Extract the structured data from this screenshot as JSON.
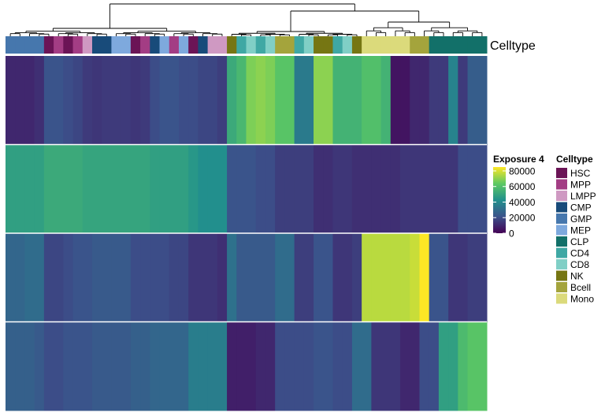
{
  "chart_data": {
    "type": "heatmap",
    "annotation_label": "Celltype",
    "x_count": 50,
    "columns_celltype": [
      "GMP",
      "GMP",
      "GMP",
      "GMP",
      "HSC",
      "MPP",
      "HSC",
      "MPP",
      "LMPP",
      "CMP",
      "CMP",
      "MEP",
      "MEP",
      "HSC",
      "MPP",
      "CMP",
      "MEP",
      "MPP",
      "MEP",
      "HSC",
      "CMP",
      "LMPP",
      "LMPP",
      "NK",
      "CD4",
      "CD8",
      "CD4",
      "CD8",
      "Bcell",
      "Bcell",
      "CD4",
      "CD8",
      "NK",
      "NK",
      "CD4",
      "CD8",
      "NK",
      "Mono",
      "Mono",
      "Mono",
      "Mono",
      "Mono",
      "Bcell",
      "Bcell",
      "CLP",
      "CLP",
      "CLP",
      "CLP",
      "CLP",
      "CLP"
    ],
    "values": [
      [
        10000,
        10000,
        10000,
        12000,
        22000,
        22000,
        20000,
        18000,
        15000,
        14000,
        15000,
        15000,
        15000,
        14000,
        15000,
        20000,
        22000,
        22000,
        20000,
        20000,
        18000,
        18000,
        16000,
        52000,
        57000,
        68000,
        70000,
        68000,
        62000,
        62000,
        35000,
        35000,
        70000,
        70000,
        55000,
        55000,
        55000,
        60000,
        60000,
        55000,
        5000,
        5000,
        10000,
        10000,
        15000,
        15000,
        38000,
        15000,
        25000,
        25000
      ],
      [
        48000,
        48000,
        48000,
        48000,
        52000,
        52000,
        52000,
        52000,
        50000,
        50000,
        50000,
        50000,
        50000,
        50000,
        50000,
        48000,
        48000,
        48000,
        48000,
        45000,
        42000,
        42000,
        42000,
        22000,
        22000,
        22000,
        20000,
        20000,
        16000,
        16000,
        16000,
        16000,
        12000,
        12000,
        14000,
        14000,
        12000,
        12000,
        12000,
        12000,
        12000,
        14000,
        14000,
        14000,
        14000,
        14000,
        14000,
        20000,
        20000,
        20000
      ],
      [
        28000,
        28000,
        30000,
        30000,
        18000,
        18000,
        20000,
        22000,
        22000,
        24000,
        24000,
        24000,
        24000,
        20000,
        20000,
        20000,
        20000,
        18000,
        18000,
        14000,
        14000,
        14000,
        12000,
        32000,
        24000,
        24000,
        24000,
        24000,
        30000,
        30000,
        16000,
        16000,
        22000,
        22000,
        14000,
        14000,
        16000,
        76000,
        76000,
        76000,
        76000,
        76000,
        78000,
        85000,
        22000,
        22000,
        14000,
        14000,
        16000,
        16000
      ],
      [
        26000,
        26000,
        26000,
        24000,
        20000,
        20000,
        22000,
        22000,
        22000,
        24000,
        24000,
        24000,
        24000,
        26000,
        26000,
        28000,
        28000,
        28000,
        28000,
        36000,
        36000,
        36000,
        36000,
        8000,
        8000,
        8000,
        10000,
        10000,
        20000,
        20000,
        20000,
        20000,
        22000,
        22000,
        20000,
        20000,
        30000,
        30000,
        14000,
        14000,
        14000,
        10000,
        10000,
        20000,
        20000,
        48000,
        48000,
        58000,
        62000,
        62000
      ]
    ],
    "color_scale": {
      "colormap": "viridis",
      "min": 0,
      "max": 85000
    },
    "legend_title": "Exposure 4",
    "legend_ticks": [
      "80000",
      "60000",
      "40000",
      "20000",
      "0"
    ],
    "legend_tick_values": [
      80000,
      60000,
      40000,
      20000,
      0
    ],
    "celltype_legend_title": "Celltype",
    "celltypes": [
      {
        "name": "HSC",
        "color": "#6b1456"
      },
      {
        "name": "MPP",
        "color": "#a33d84"
      },
      {
        "name": "LMPP",
        "color": "#cf99c2"
      },
      {
        "name": "CMP",
        "color": "#184b7a"
      },
      {
        "name": "GMP",
        "color": "#4677ad"
      },
      {
        "name": "MEP",
        "color": "#7ea9dd"
      },
      {
        "name": "CLP",
        "color": "#127069"
      },
      {
        "name": "CD4",
        "color": "#3fa8a4"
      },
      {
        "name": "CD8",
        "color": "#80cfc6"
      },
      {
        "name": "NK",
        "color": "#767613"
      },
      {
        "name": "Bcell",
        "color": "#a4a43c"
      },
      {
        "name": "Mono",
        "color": "#dbda7b"
      }
    ]
  }
}
